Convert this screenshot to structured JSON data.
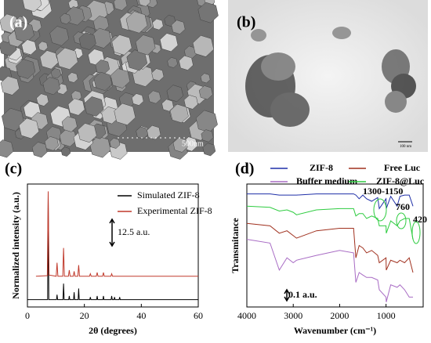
{
  "panels": {
    "a": {
      "label": "(a)",
      "scale": "500nm"
    },
    "b": {
      "label": "(b)",
      "scale": "100 nm"
    }
  },
  "chart_data": [
    {
      "type": "line",
      "panel": "(c)",
      "x_label": "2θ (degrees)",
      "y_label": "Normalized intensity (a.u.)",
      "xlim": [
        0,
        60
      ],
      "ylim": [
        0,
        100
      ],
      "xticks": [
        0,
        20,
        40,
        60
      ],
      "annotations": [
        "12.5 a.u."
      ],
      "series": [
        {
          "name": "Simulated ZIF-8",
          "color": "#000000",
          "x": [
            0,
            7.1,
            7.3,
            7.5,
            10.2,
            10.4,
            10.6,
            12.5,
            12.7,
            12.9,
            14.5,
            14.7,
            14.9,
            16.2,
            16.4,
            16.6,
            17.8,
            18,
            18.2,
            21.9,
            22.1,
            22.3,
            24.3,
            24.5,
            24.7,
            26.5,
            26.7,
            26.9,
            29.4,
            29.6,
            29.8,
            30.4,
            30.6,
            30.8,
            32.2,
            32.4,
            32.6,
            60
          ],
          "values": [
            6,
            6,
            90,
            6,
            6,
            10,
            6,
            6,
            19,
            6,
            6,
            9,
            6,
            6,
            12,
            6,
            6,
            15,
            6,
            6,
            8,
            6,
            6,
            9,
            6,
            6,
            9,
            6,
            6,
            9,
            6,
            6,
            8,
            6,
            6,
            8,
            6,
            6
          ]
        },
        {
          "name": "Experimental ZIF-8",
          "color": "#c0392b",
          "x": [
            3,
            7,
            7.3,
            7.6,
            10.1,
            10.4,
            10.7,
            12.4,
            12.7,
            13,
            14.4,
            14.7,
            15,
            16.1,
            16.4,
            16.7,
            17.7,
            18,
            18.3,
            21.8,
            22.1,
            22.4,
            24.2,
            24.5,
            24.8,
            26.4,
            26.7,
            27,
            29.3,
            29.6,
            29.9,
            60
          ],
          "values": [
            25,
            25.5,
            94,
            26,
            25,
            36,
            25,
            25,
            48,
            25,
            25,
            30,
            25,
            25,
            29,
            25,
            25,
            34,
            25,
            25,
            27,
            25,
            25,
            28,
            25,
            25,
            28,
            25,
            25,
            27,
            25,
            25
          ]
        }
      ]
    },
    {
      "type": "line",
      "panel": "(d)",
      "x_label": "Wavenumber (cm⁻¹)",
      "y_label": "Transmitance",
      "xlim": [
        4000,
        200
      ],
      "ylim": [
        0,
        100
      ],
      "xticks": [
        4000,
        3000,
        2000,
        1000
      ],
      "annotations": [
        "1300-1150",
        "760",
        "420",
        "0.1 a.u."
      ],
      "x": [
        4000,
        3500,
        3300,
        3135,
        3000,
        2930,
        2500,
        2000,
        1700,
        1650,
        1580,
        1500,
        1420,
        1310,
        1180,
        1146,
        1000,
        995,
        900,
        760,
        700,
        600,
        500,
        420
      ],
      "series": [
        {
          "name": "ZIF-8",
          "color": "#1f2fa8",
          "values": [
            92,
            92,
            91,
            91,
            91,
            91,
            92,
            92,
            92,
            91,
            88,
            91,
            88,
            86,
            89,
            80,
            88,
            80,
            90,
            82,
            90,
            91,
            91,
            82
          ]
        },
        {
          "name": "Free Luc",
          "color": "#a0301e",
          "values": [
            68,
            66,
            60,
            62,
            58,
            56,
            62,
            64,
            64,
            40,
            50,
            48,
            44,
            46,
            42,
            36,
            40,
            30,
            38,
            36,
            38,
            36,
            40,
            28
          ]
        },
        {
          "name": "Buffer medium",
          "color": "#a86bc4",
          "values": [
            55,
            52,
            30,
            40,
            36,
            38,
            42,
            46,
            44,
            20,
            28,
            26,
            24,
            24,
            22,
            14,
            8,
            4,
            18,
            16,
            18,
            14,
            8,
            8
          ]
        },
        {
          "name": "ZIF-8@Luc",
          "color": "#2ecc40",
          "values": [
            82,
            81,
            78,
            79,
            77,
            75,
            79,
            80,
            80,
            74,
            76,
            76,
            72,
            74,
            72,
            66,
            66,
            60,
            70,
            66,
            70,
            72,
            72,
            55
          ]
        }
      ]
    }
  ]
}
